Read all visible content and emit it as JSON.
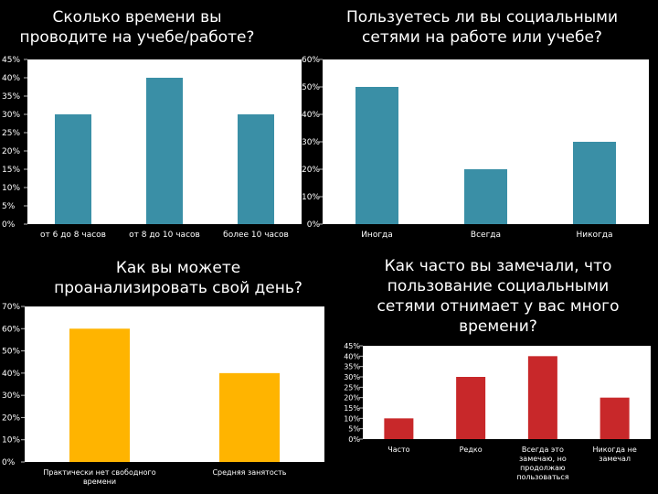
{
  "chart_data": [
    {
      "type": "bar",
      "title_lines": [
        "Сколько времени вы",
        "проводите на учебе/работе?"
      ],
      "categories": [
        "от 6 до 8 часов",
        "от 8 до 10 часов",
        "более 10 часов"
      ],
      "values": [
        30,
        40,
        30
      ],
      "ylim": [
        0,
        45
      ],
      "ytick_step": 5,
      "unit": "%",
      "bar_color": "#3a8fa6",
      "grid": false
    },
    {
      "type": "bar",
      "title_lines": [
        "Пользуетесь ли вы социальными",
        "сетями на работе или учебе?"
      ],
      "categories": [
        "Иногда",
        "Всегда",
        "Никогда"
      ],
      "values": [
        50,
        20,
        30
      ],
      "ylim": [
        0,
        60
      ],
      "ytick_step": 10,
      "unit": "%",
      "bar_color": "#3a8fa6",
      "grid": false
    },
    {
      "type": "bar",
      "title_lines": [
        "Как вы можете",
        "проанализировать свой день?"
      ],
      "categories": [
        "Практически нет свободного времени",
        "Средняя занятость"
      ],
      "values": [
        60,
        40
      ],
      "ylim": [
        0,
        70
      ],
      "ytick_step": 10,
      "unit": "%",
      "bar_color": "#ffb400",
      "grid": false
    },
    {
      "type": "bar",
      "title_lines": [
        "Как часто вы замечали, что",
        "пользование социальными",
        "сетями отнимает у вас много",
        "времени?"
      ],
      "categories": [
        "Часто",
        "Редко",
        "Всегда это замечаю, но продолжаю пользоваться",
        "Никогда не замечал"
      ],
      "values": [
        10,
        30,
        40,
        20
      ],
      "ylim": [
        0,
        45
      ],
      "ytick_step": 5,
      "unit": "%",
      "bar_color": "#c8282a",
      "grid": false
    }
  ]
}
